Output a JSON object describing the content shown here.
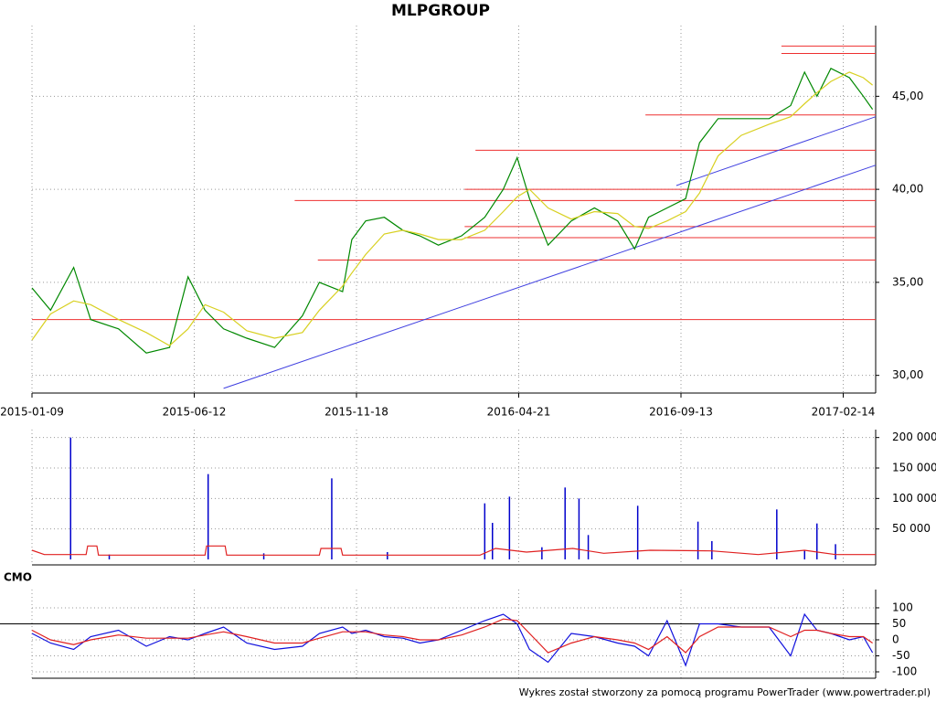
{
  "chart_data": [
    {
      "type": "line",
      "title": "MLPGROUP",
      "xlim": [
        0,
        546
      ],
      "ylim": [
        29.05,
        48.8
      ],
      "xticks": [
        {
          "value": 0,
          "label": "2015-01-09"
        },
        {
          "value": 105,
          "label": "2015-06-12"
        },
        {
          "value": 210,
          "label": "2015-11-18"
        },
        {
          "value": 315,
          "label": "2016-04-21"
        },
        {
          "value": 420,
          "label": "2016-09-13"
        },
        {
          "value": 525,
          "label": "2017-02-14"
        }
      ],
      "yticks": [
        {
          "value": 30,
          "label": "30,00"
        },
        {
          "value": 35,
          "label": "35,00"
        },
        {
          "value": 40,
          "label": "40,00"
        },
        {
          "value": 45,
          "label": "45,00"
        }
      ],
      "grid": true,
      "series": [
        {
          "color": "#008800",
          "x": [
            0,
            12,
            27,
            38,
            56,
            74,
            89,
            101,
            112,
            124,
            139,
            157,
            175,
            186,
            201,
            207,
            216,
            228,
            240,
            251,
            263,
            278,
            293,
            305,
            314,
            322,
            334,
            349,
            364,
            379,
            390,
            399,
            411,
            423,
            432,
            444,
            459,
            477,
            491,
            500,
            508,
            517,
            529,
            538,
            544
          ],
          "values": [
            34.7,
            33.5,
            35.8,
            33,
            32.5,
            31.2,
            31.5,
            35.3,
            33.5,
            32.5,
            32,
            31.5,
            33.2,
            35,
            34.5,
            37.3,
            38.3,
            38.5,
            37.8,
            37.5,
            37,
            37.5,
            38.5,
            40,
            41.7,
            39.5,
            37,
            38.3,
            39,
            38.3,
            36.8,
            38.5,
            39,
            39.5,
            42.5,
            43.8,
            43.8,
            43.8,
            44.5,
            46.3,
            45,
            46.5,
            46,
            45,
            44.3
          ]
        },
        {
          "color": "#d8d020",
          "x": [
            0,
            12,
            27,
            38,
            56,
            74,
            89,
            101,
            112,
            124,
            139,
            157,
            175,
            186,
            201,
            207,
            216,
            228,
            240,
            251,
            263,
            278,
            293,
            305,
            314,
            322,
            334,
            349,
            364,
            379,
            390,
            399,
            411,
            423,
            432,
            444,
            459,
            477,
            491,
            500,
            508,
            517,
            529,
            538,
            544
          ],
          "values": [
            31.9,
            33.3,
            34,
            33.8,
            33,
            32.3,
            31.6,
            32.5,
            33.8,
            33.4,
            32.4,
            32,
            32.3,
            33.5,
            34.8,
            35.5,
            36.5,
            37.6,
            37.8,
            37.6,
            37.3,
            37.3,
            37.8,
            38.8,
            39.6,
            40,
            39,
            38.4,
            38.8,
            38.7,
            38,
            37.9,
            38.3,
            38.8,
            39.8,
            41.8,
            42.9,
            43.5,
            43.9,
            44.6,
            45.2,
            45.8,
            46.3,
            46,
            45.6
          ]
        }
      ],
      "levels_color": "#ee3030",
      "levels": [
        {
          "value": 47.7,
          "start": 485
        },
        {
          "value": 47.3,
          "start": 485
        },
        {
          "value": 44,
          "start": 397
        },
        {
          "value": 42.1,
          "start": 287
        },
        {
          "value": 40,
          "start": 280
        },
        {
          "value": 39.4,
          "start": 170
        },
        {
          "value": 38,
          "start": 280
        },
        {
          "value": 37.4,
          "start": 280
        },
        {
          "value": 36.2,
          "start": 185
        },
        {
          "value": 33,
          "start": 0
        }
      ],
      "trend_color": "#4040e0",
      "trendlines": [
        {
          "x": [
            124,
            546
          ],
          "y": [
            29.3,
            41.3
          ]
        },
        {
          "x": [
            417,
            546
          ],
          "y": [
            40.2,
            43.9
          ]
        }
      ]
    },
    {
      "type": "bar",
      "xlim": [
        0,
        546
      ],
      "ylim": [
        -9000,
        213000
      ],
      "yticks": [
        {
          "value": 50000,
          "label": "50 000"
        },
        {
          "value": 100000,
          "label": "100 000"
        },
        {
          "value": 150000,
          "label": "150 000"
        },
        {
          "value": 200000,
          "label": "200 000"
        }
      ],
      "grid": true,
      "series": [
        {
          "type": "bar",
          "color": "#0000cc",
          "x": [
            25,
            50,
            114,
            150,
            194,
            230,
            293,
            298,
            309,
            330,
            345,
            354,
            360,
            392,
            431,
            440,
            482,
            500,
            508,
            520
          ],
          "values": [
            200000,
            8000,
            140000,
            10000,
            133000,
            12000,
            92000,
            60000,
            103000,
            20000,
            118000,
            100000,
            40000,
            88000,
            62000,
            30000,
            82000,
            15000,
            59000,
            25000
          ]
        },
        {
          "type": "line",
          "color": "#e02020",
          "x": [
            0,
            8,
            35,
            36,
            42,
            43,
            112,
            113,
            125,
            126,
            186,
            187,
            200,
            201,
            290,
            300,
            320,
            350,
            370,
            400,
            440,
            470,
            500,
            520,
            546
          ],
          "values": [
            15000,
            8000,
            8000,
            22000,
            22000,
            7000,
            7000,
            22000,
            22000,
            7000,
            7000,
            18000,
            18000,
            7000,
            7000,
            18000,
            12000,
            18000,
            10000,
            15000,
            14000,
            8000,
            15000,
            8000,
            8000
          ]
        }
      ]
    },
    {
      "type": "line",
      "title": "CMO",
      "xlim": [
        0,
        546
      ],
      "ylim": [
        -120,
        157
      ],
      "yticks": [
        -100,
        -50,
        0,
        50,
        100
      ],
      "grid": true,
      "reference_line": 50,
      "series": [
        {
          "color": "#1010dd",
          "x": [
            0,
            12,
            27,
            38,
            56,
            74,
            89,
            101,
            112,
            124,
            139,
            157,
            175,
            186,
            201,
            207,
            216,
            228,
            240,
            251,
            263,
            278,
            293,
            305,
            314,
            322,
            334,
            349,
            364,
            379,
            390,
            399,
            411,
            423,
            432,
            444,
            459,
            477,
            491,
            500,
            508,
            517,
            529,
            538,
            544
          ],
          "values": [
            20,
            -10,
            -30,
            10,
            30,
            -20,
            10,
            0,
            20,
            40,
            -10,
            -30,
            -20,
            20,
            40,
            20,
            30,
            10,
            5,
            -10,
            0,
            30,
            60,
            80,
            50,
            -30,
            -70,
            20,
            10,
            -10,
            -20,
            -50,
            60,
            -80,
            50,
            50,
            40,
            40,
            -50,
            80,
            30,
            20,
            0,
            10,
            -40
          ]
        },
        {
          "color": "#e02020",
          "x": [
            0,
            12,
            27,
            38,
            56,
            74,
            89,
            101,
            112,
            124,
            139,
            157,
            175,
            186,
            201,
            207,
            216,
            228,
            240,
            251,
            263,
            278,
            293,
            305,
            314,
            322,
            334,
            349,
            364,
            379,
            390,
            399,
            411,
            423,
            432,
            444,
            459,
            477,
            491,
            500,
            508,
            517,
            529,
            538,
            544
          ],
          "values": [
            30,
            0,
            -15,
            0,
            15,
            5,
            5,
            5,
            15,
            25,
            10,
            -10,
            -10,
            5,
            25,
            25,
            25,
            15,
            10,
            0,
            0,
            15,
            40,
            65,
            60,
            20,
            -40,
            -10,
            10,
            0,
            -10,
            -30,
            10,
            -40,
            10,
            40,
            40,
            40,
            10,
            30,
            30,
            20,
            10,
            10,
            -10
          ]
        }
      ]
    }
  ],
  "footer": "Wykres został stworzony za pomocą programu PowerTrader (www.powertrader.pl)"
}
